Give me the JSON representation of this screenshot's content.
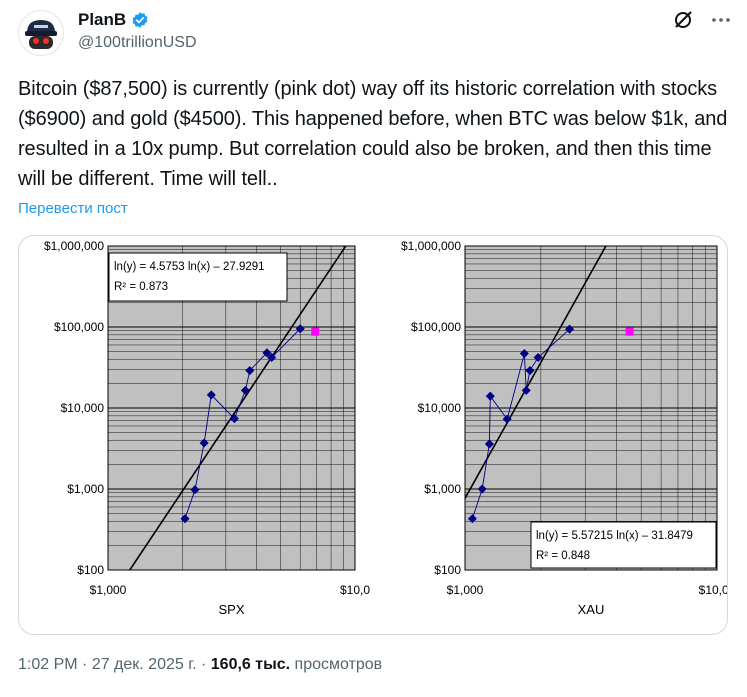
{
  "author": {
    "name": "PlanB",
    "handle": "@100trillionUSD",
    "avatar_icon": "red-eyes-hat-avatar-icon"
  },
  "header_icons": [
    "grok-icon",
    "more-options-icon"
  ],
  "tweet": {
    "text": "Bitcoin ($87,500) is currently (pink dot) way off its historic correlation with stocks ($6900) and gold ($4500). This happened before, when BTC was below $1k, and resulted in a 10x pump. But correlation could also be broken, and then this time will be different. Time will tell..",
    "translate_label": "Перевести пост"
  },
  "meta": {
    "time": "1:02 PM",
    "sep1": " · ",
    "date": "27 дек. 2025 г.",
    "sep2": " · ",
    "views_count": "160,6 тыс.",
    "views_label": " просмотров"
  },
  "colors": {
    "plot_bg": "#c0c0c0",
    "series": "#000080",
    "current": "#ff00ff",
    "link": "#1d9bf0",
    "verified": "#1d9bf0"
  },
  "chart_data": [
    {
      "type": "scatter",
      "xlabel": "SPX",
      "x_scale": "log",
      "y_scale": "log",
      "xlim": [
        1000,
        10000
      ],
      "ylim": [
        100,
        1000000
      ],
      "x_tick_labels": [
        "$1,000",
        "$10,0"
      ],
      "y_tick_labels": [
        "$1,000,000",
        "$100,000",
        "$10,000",
        "$1,000",
        "$100"
      ],
      "equation": "ln(y) = 4.5753 ln(x) – 27.9291",
      "r_squared": "R² = 0.873",
      "fit": {
        "slope": 4.5753,
        "intercept": -27.9291
      },
      "series": [
        {
          "x": [
            2050,
            2250,
            2450,
            2620,
            3250,
            3600,
            3750,
            4400,
            4600,
            6000
          ],
          "y": [
            430,
            980,
            3700,
            14500,
            7400,
            16500,
            29000,
            48000,
            42000,
            95000
          ]
        }
      ],
      "current": {
        "x": 6900,
        "y": 87500
      }
    },
    {
      "type": "scatter",
      "xlabel": "XAU",
      "x_scale": "log",
      "y_scale": "log",
      "xlim": [
        1000,
        10000
      ],
      "ylim": [
        100,
        1000000
      ],
      "x_tick_labels": [
        "$1,000",
        "$10,00"
      ],
      "y_tick_labels": [
        "$1,000,000",
        "$100,000",
        "$10,000",
        "$1,000",
        "$100"
      ],
      "equation": "ln(y) = 5.57215 ln(x) – 31.8479",
      "r_squared": "R² = 0.848",
      "fit": {
        "slope": 5.57215,
        "intercept": -31.8479
      },
      "series": [
        {
          "x": [
            1070,
            1170,
            1250,
            1260,
            1470,
            1720,
            1750,
            1810,
            1950,
            2600
          ],
          "y": [
            430,
            1000,
            3600,
            14000,
            7300,
            47000,
            16500,
            29000,
            42000,
            94000
          ]
        }
      ],
      "current": {
        "x": 4500,
        "y": 87500
      }
    }
  ]
}
